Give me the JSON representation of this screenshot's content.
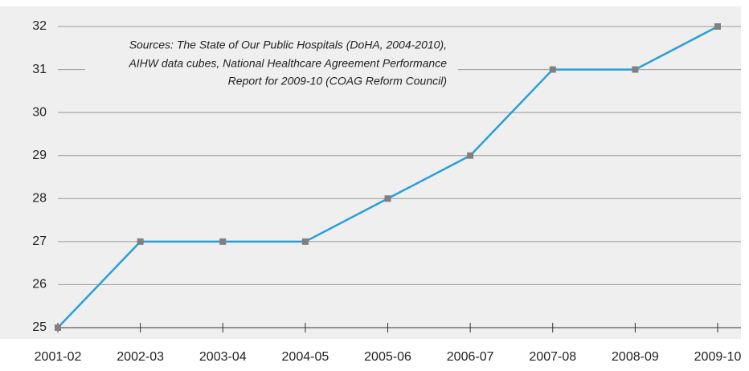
{
  "chart_data": {
    "type": "line",
    "annotation": [
      "Sources: The State of Our Public Hospitals (DoHA, 2004-2010),",
      "AIHW data cubes, National Healthcare Agreement Performance",
      "Report for 2009-10 (COAG Reform Council)"
    ],
    "categories": [
      "2001-02",
      "2002-03",
      "2003-04",
      "2004-05",
      "2005-06",
      "2006-07",
      "2007-08",
      "2008-09",
      "2009-10"
    ],
    "series": [
      {
        "name": "Value",
        "color": "#2a9fd8",
        "values": [
          25,
          27,
          27,
          27,
          28,
          29,
          31,
          31,
          32
        ]
      }
    ],
    "ylim": [
      25,
      32
    ],
    "yticks": [
      25,
      26,
      27,
      28,
      29,
      30,
      31,
      32
    ],
    "grid": true,
    "legend": false
  }
}
